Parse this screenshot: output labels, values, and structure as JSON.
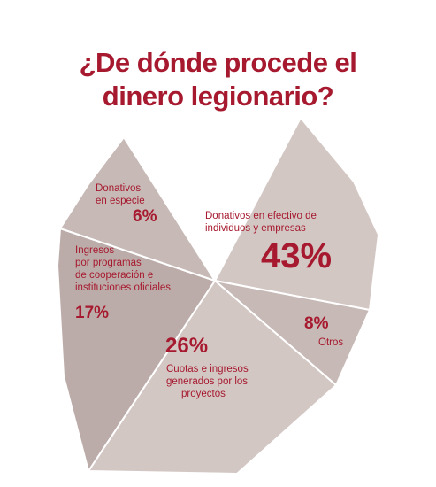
{
  "title_lines": [
    "¿De dónde procede el",
    "dinero legionario?"
  ],
  "colors": {
    "title": "#a6192e",
    "label": "#a6192e",
    "slice_light": "#d3c7c4",
    "slice_medium": "#c7b9b6",
    "slice_dark": "#bcaca9",
    "edge": "#ffffff"
  },
  "chart_data": {
    "type": "pie",
    "title": "¿De dónde procede el dinero legionario?",
    "slices": [
      {
        "label": "Donativos en efectivo de individuos y empresas",
        "label_lines": [
          "Donativos en efectivo de",
          "individuos y empresas"
        ],
        "value": 43,
        "value_label": "43%"
      },
      {
        "label": "Otros",
        "label_lines": [
          "Otros"
        ],
        "value": 8,
        "value_label": "8%"
      },
      {
        "label": "Cuotas e ingresos generados por los proyectos",
        "label_lines": [
          "Cuotas e ingresos",
          "generados por los",
          "proyectos"
        ],
        "value": 26,
        "value_label": "26%"
      },
      {
        "label": "Ingresos por programas de cooperación e instituciones oficiales",
        "label_lines": [
          "Ingresos",
          "por programas",
          "de cooperación e",
          "instituciones oficiales"
        ],
        "value": 17,
        "value_label": "17%"
      },
      {
        "label": "Donativos en especie",
        "label_lines": [
          "Donativos",
          "en especie"
        ],
        "value": 6,
        "value_label": "6%"
      }
    ]
  }
}
